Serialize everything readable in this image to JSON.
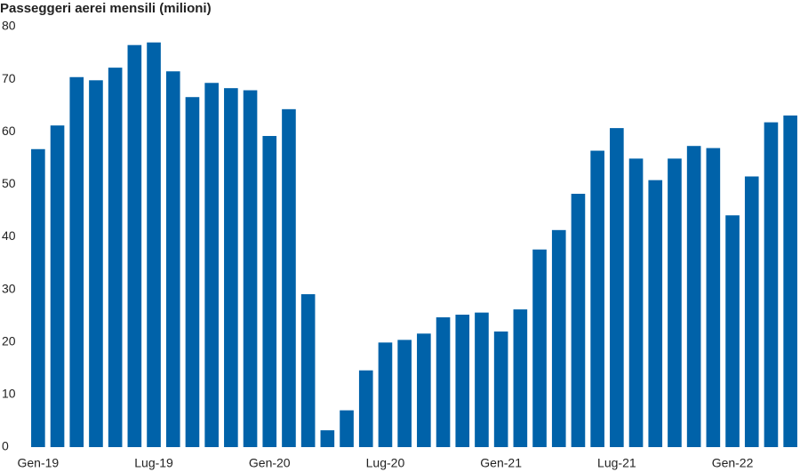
{
  "chart_data": {
    "type": "bar",
    "title": "Passeggeri aerei mensili (milioni)",
    "categories": [
      "Gen-19",
      null,
      null,
      null,
      null,
      null,
      "Lug-19",
      null,
      null,
      null,
      null,
      null,
      "Gen-20",
      null,
      null,
      null,
      null,
      null,
      "Lug-20",
      null,
      null,
      null,
      null,
      null,
      "Gen-21",
      null,
      null,
      null,
      null,
      null,
      "Lug-21",
      null,
      null,
      null,
      null,
      null,
      "Gen-22",
      null,
      null,
      null
    ],
    "values": [
      56.7,
      61.2,
      70.4,
      69.8,
      72.2,
      76.5,
      77.0,
      71.5,
      66.6,
      69.3,
      68.3,
      67.9,
      59.2,
      64.3,
      29.1,
      3.2,
      7.0,
      14.6,
      19.9,
      20.4,
      21.6,
      24.7,
      25.2,
      25.6,
      22.0,
      26.2,
      37.6,
      41.3,
      48.2,
      56.4,
      60.7,
      54.9,
      50.8,
      54.9,
      57.3,
      56.9,
      44.1,
      51.5,
      61.8,
      63.1
    ],
    "color": "#0062a9",
    "ylim": [
      0,
      80
    ],
    "yticks": [
      0,
      10,
      20,
      30,
      40,
      50,
      60,
      70,
      80
    ],
    "grid": false
  }
}
